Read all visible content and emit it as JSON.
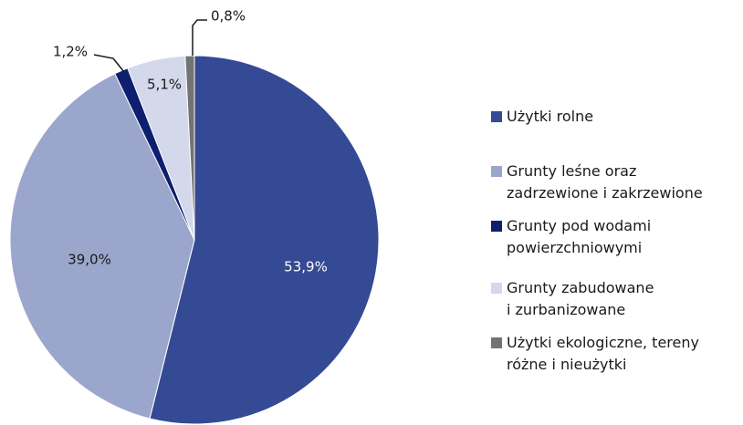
{
  "chart_data": {
    "type": "pie",
    "categories": [
      "Użytki rolne",
      "Grunty leśne oraz\nzadrzewione i zakrzewione",
      "Grunty pod wodami\npowierzchniowymi",
      "Grunty zabudowane\ni zurbanizowane",
      "Użytki ekologiczne, tereny\nróżne i nieużytki"
    ],
    "values": [
      53.9,
      39.0,
      1.2,
      5.1,
      0.8
    ],
    "value_labels": [
      "53,9%",
      "39,0%",
      "1,2%",
      "5,1%",
      "0,8%"
    ],
    "colors": [
      "#344a94",
      "#9aa6cb",
      "#0d1f6e",
      "#d3d8ea",
      "#737373"
    ],
    "legend": "right"
  }
}
